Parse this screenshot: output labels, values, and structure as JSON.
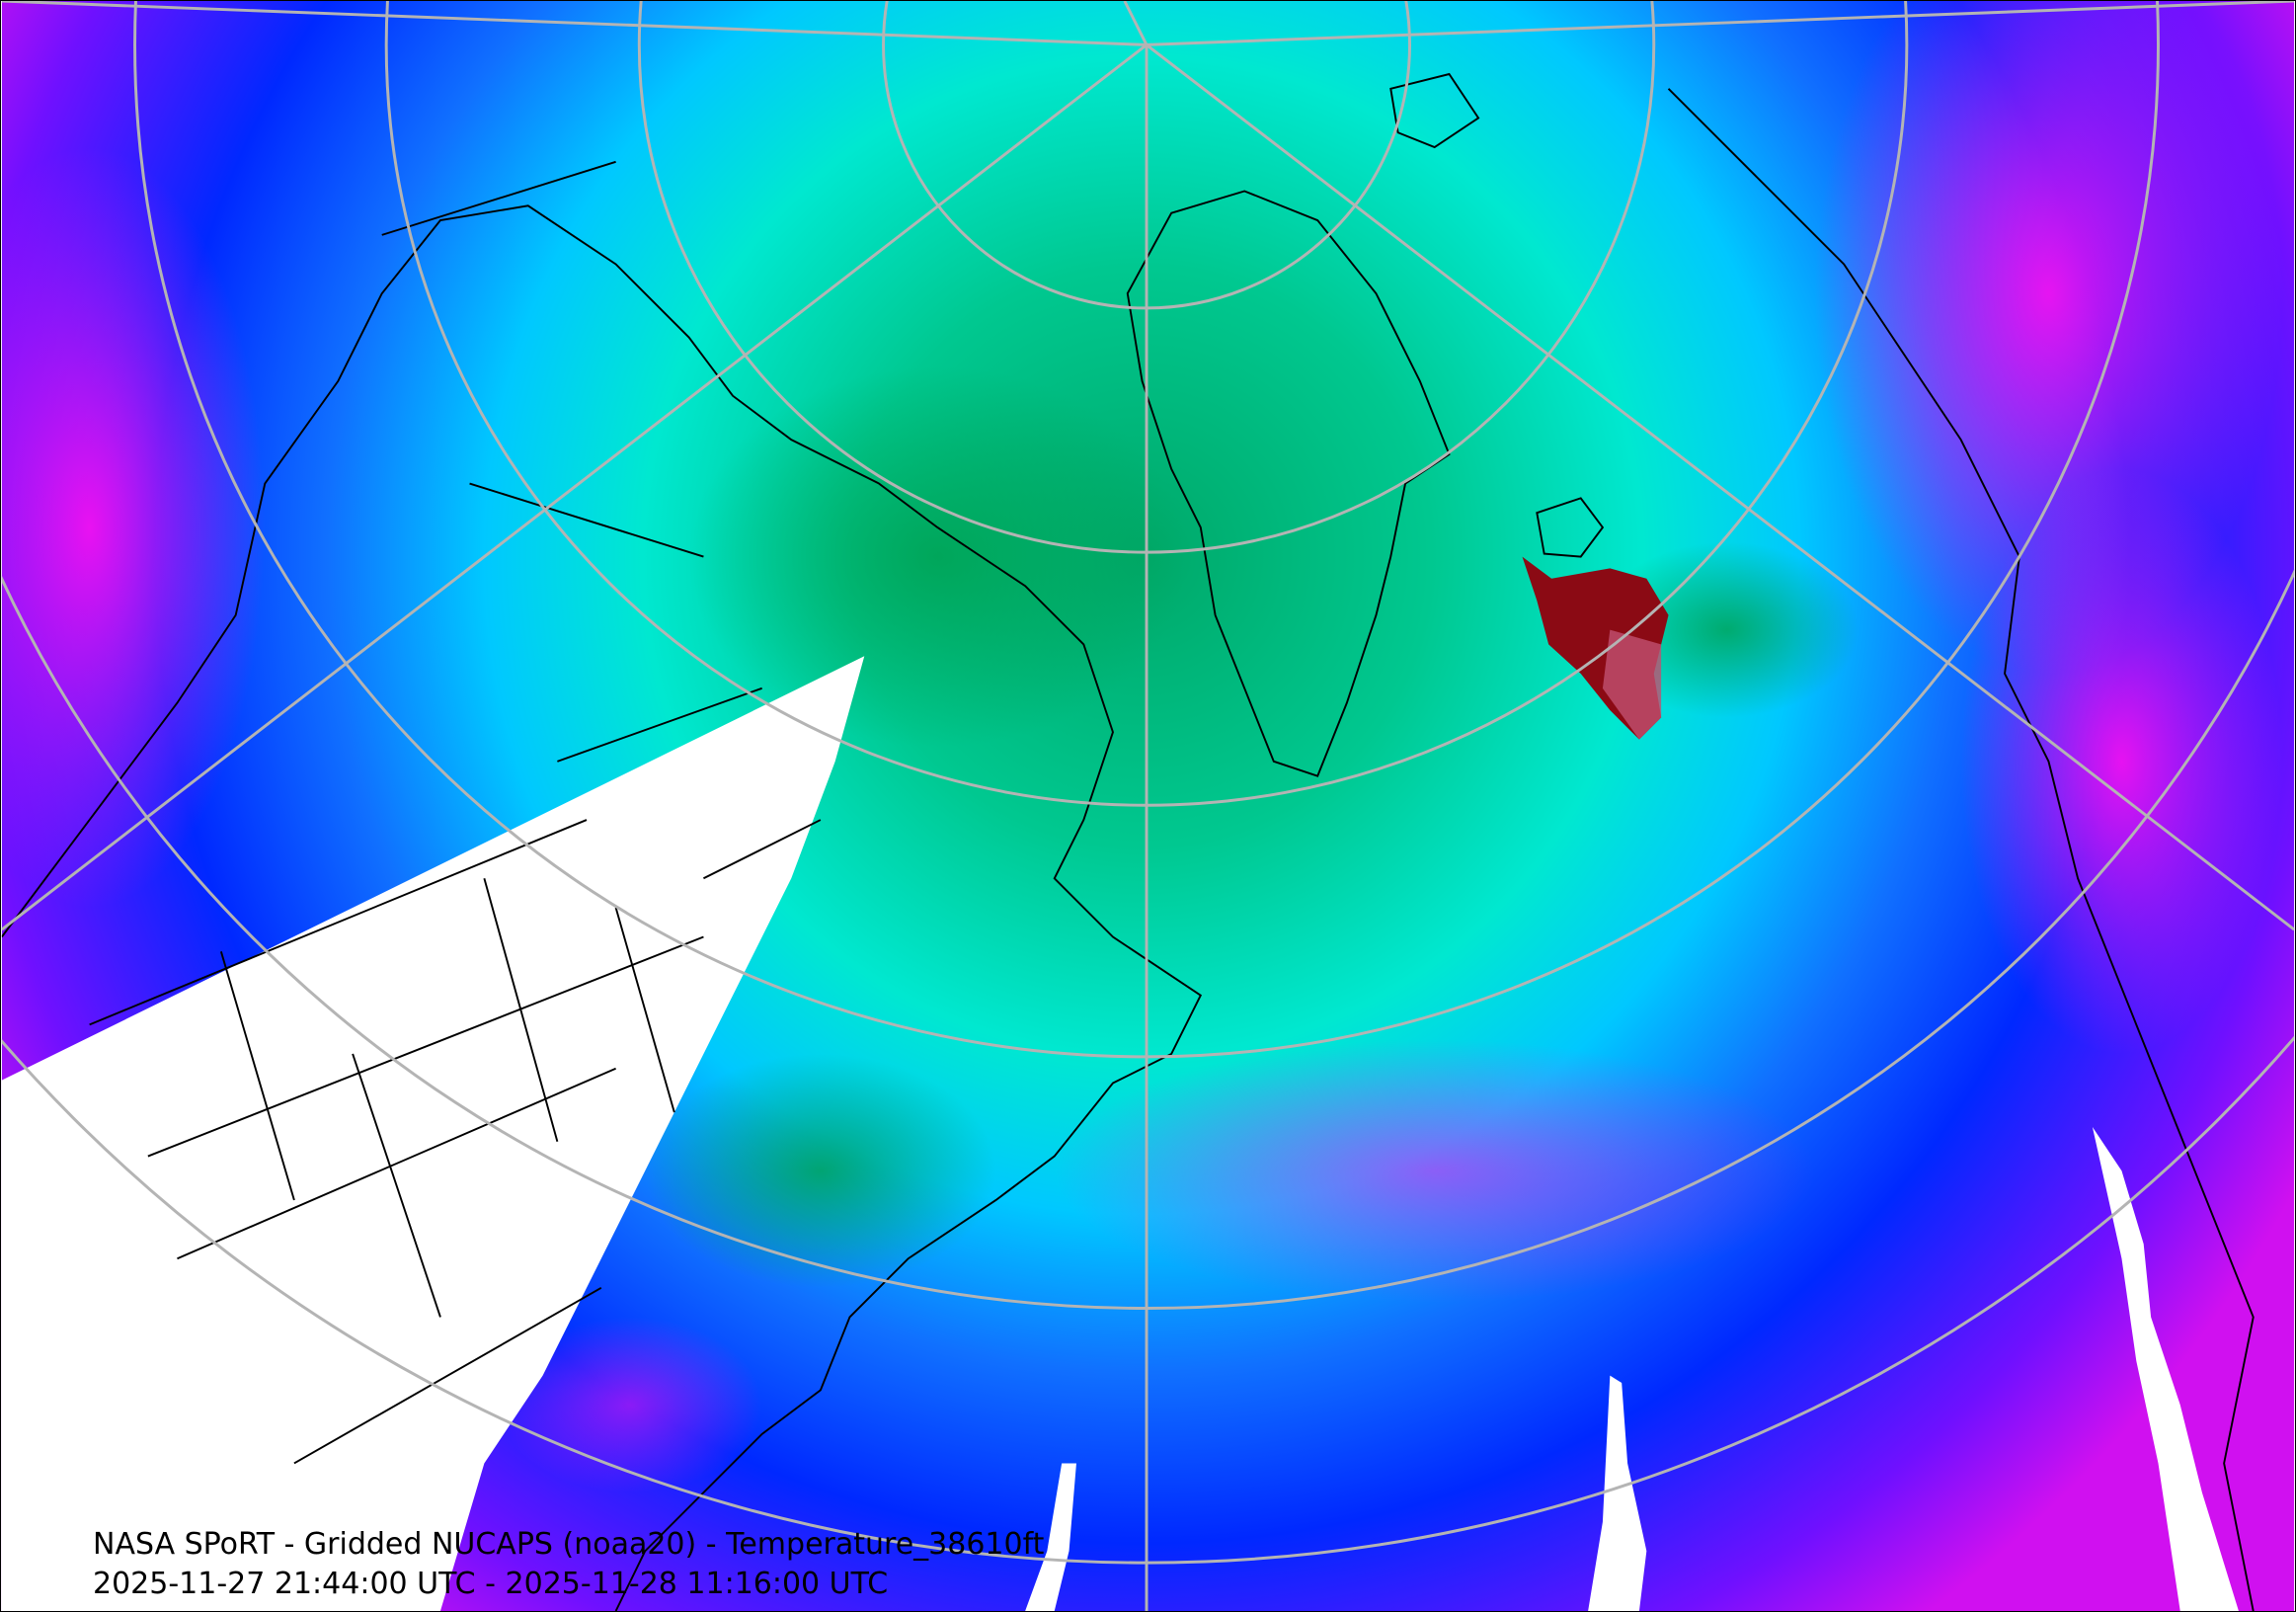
{
  "map": {
    "title": "NASA SPoRT - Gridded NUCAPS (noaa20) - Temperature_38610ft",
    "time_range": "2025-11-27 21:44:00 UTC - 2025-11-28 11:16:00 UTC",
    "projection": "polar stereographic (north)",
    "colors": {
      "warm_anomaly": "#8b0000",
      "green": "#00a060",
      "teal": "#00e0c0",
      "cyan": "#00c8ff",
      "blue": "#0030ff",
      "purple": "#8000ff",
      "magenta": "#ff00ff",
      "no_data": "#ffffff",
      "graticule": "#b0b0b0",
      "borders": "#000000"
    }
  }
}
